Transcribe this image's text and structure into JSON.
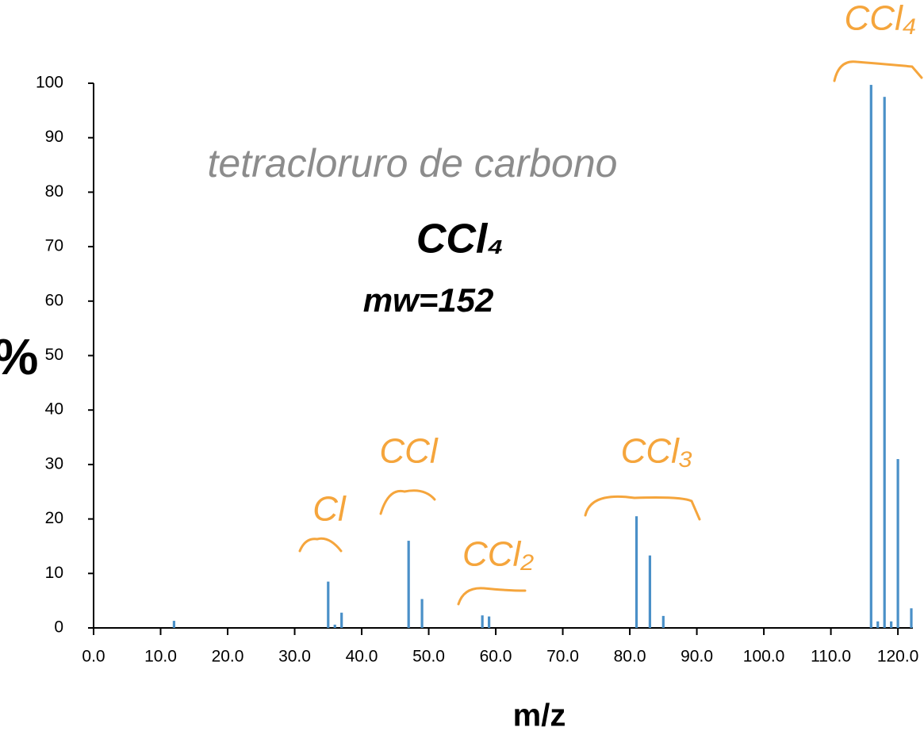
{
  "chart_data": {
    "type": "bar",
    "x": [
      12,
      35,
      36,
      37,
      47,
      49,
      58,
      59,
      81,
      83,
      85,
      116,
      117,
      118,
      119,
      120,
      122
    ],
    "values": [
      1.3,
      8.5,
      0.6,
      2.8,
      16,
      5.3,
      2.3,
      2.1,
      20.5,
      13.3,
      2.2,
      99.7,
      1.2,
      97.5,
      1.2,
      31,
      3.6
    ],
    "color": "#4a90c8",
    "xlim": [
      0,
      122
    ],
    "xticks": [
      {
        "value": 0,
        "label": "0.0"
      },
      {
        "value": 10,
        "label": "10.0"
      },
      {
        "value": 20,
        "label": "20.0"
      },
      {
        "value": 30,
        "label": "30.0"
      },
      {
        "value": 40,
        "label": "40.0"
      },
      {
        "value": 50,
        "label": "50.0"
      },
      {
        "value": 60,
        "label": "60.0"
      },
      {
        "value": 70,
        "label": "70.0"
      },
      {
        "value": 80,
        "label": "80.0"
      },
      {
        "value": 90,
        "label": "90.0"
      },
      {
        "value": 100,
        "label": "100.0"
      },
      {
        "value": 110,
        "label": "110.0"
      },
      {
        "value": 120,
        "label": "120.0"
      }
    ],
    "ylim": [
      0,
      100
    ],
    "yticks": [
      0,
      10,
      20,
      30,
      40,
      50,
      60,
      70,
      80,
      90,
      100
    ],
    "y_label": "%",
    "x_label": "m/z",
    "annotations": [
      {
        "text": "tetracloruro de carbono",
        "color": "#8c8c8c"
      },
      {
        "text": "CCl₄",
        "color": "#000000"
      },
      {
        "text": "mw=152",
        "color": "#000000"
      },
      {
        "text": "Cl",
        "color": "#f5a53c"
      },
      {
        "text": "CCl",
        "color": "#f5a53c"
      },
      {
        "text": "CCl₂",
        "color": "#f5a53c"
      },
      {
        "text": "CCl₃",
        "color": "#f5a53c"
      },
      {
        "text": "CCl₄",
        "color": "#f5a53c"
      }
    ]
  }
}
